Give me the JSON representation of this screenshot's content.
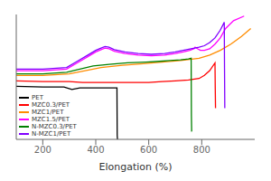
{
  "chart_data": {
    "type": "line",
    "xlabel": "Elongation (%)",
    "xlim": [
      100,
      1000
    ],
    "ylim": [
      -0.6,
      1.0
    ],
    "xticks": [
      200,
      400,
      600,
      800
    ],
    "tick_labels": "x",
    "legend": "lower left",
    "series": [
      {
        "name": "PET",
        "color": "#000000",
        "x": [
          100,
          200,
          280,
          310,
          340,
          360,
          460,
          480,
          481,
          482
        ],
        "values": [
          0.08,
          0.07,
          0.07,
          0.04,
          0.06,
          0.06,
          0.06,
          0.06,
          -0.55,
          -0.6
        ]
      },
      {
        "name": "MZC0.3/PET",
        "color": "#ff0000",
        "x": [
          100,
          200,
          300,
          350,
          400,
          500,
          600,
          650,
          700,
          750,
          790,
          810,
          830,
          850,
          851,
          852
        ],
        "values": [
          0.15,
          0.14,
          0.14,
          0.13,
          0.13,
          0.13,
          0.13,
          0.14,
          0.15,
          0.16,
          0.18,
          0.22,
          0.28,
          0.38,
          0.05,
          -0.2
        ]
      },
      {
        "name": "MZC1/PET",
        "color": "#ff8c00",
        "x": [
          100,
          200,
          300,
          360,
          420,
          500,
          580,
          650,
          720,
          790,
          830,
          870,
          910,
          950,
          985
        ],
        "values": [
          0.22,
          0.22,
          0.24,
          0.28,
          0.32,
          0.35,
          0.37,
          0.39,
          0.41,
          0.44,
          0.48,
          0.54,
          0.62,
          0.72,
          0.82
        ]
      },
      {
        "name": "MZC1.5/PET",
        "color": "#ff00ff",
        "x": [
          100,
          200,
          290,
          330,
          370,
          400,
          420,
          435,
          450,
          470,
          510,
          560,
          610,
          660,
          700,
          730,
          755,
          770,
          771,
          775,
          785,
          795,
          810,
          830,
          850,
          870,
          890,
          920,
          960
        ],
        "values": [
          0.28,
          0.28,
          0.3,
          0.38,
          0.46,
          0.52,
          0.55,
          0.57,
          0.56,
          0.53,
          0.5,
          0.48,
          0.47,
          0.48,
          0.5,
          0.52,
          0.54,
          0.56,
          0.56,
          0.58,
          0.56,
          0.54,
          0.54,
          0.56,
          0.62,
          0.7,
          0.82,
          0.92,
          0.98
        ]
      },
      {
        "name": "N-MZC0.3/PET",
        "color": "#008000",
        "x": [
          100,
          200,
          290,
          340,
          390,
          450,
          520,
          590,
          640,
          680,
          720,
          750,
          760,
          761,
          762
        ],
        "values": [
          0.24,
          0.24,
          0.26,
          0.3,
          0.34,
          0.36,
          0.38,
          0.39,
          0.4,
          0.41,
          0.42,
          0.43,
          0.44,
          -0.3,
          -0.5
        ]
      },
      {
        "name": "N-MZC1/PET",
        "color": "#8000ff",
        "x": [
          100,
          200,
          290,
          330,
          370,
          400,
          420,
          435,
          450,
          470,
          510,
          560,
          610,
          660,
          700,
          730,
          760,
          790,
          810,
          830,
          850,
          870,
          885,
          886,
          887
        ],
        "values": [
          0.3,
          0.3,
          0.32,
          0.4,
          0.48,
          0.54,
          0.57,
          0.59,
          0.58,
          0.55,
          0.52,
          0.5,
          0.49,
          0.5,
          0.52,
          0.54,
          0.56,
          0.58,
          0.6,
          0.64,
          0.7,
          0.8,
          0.9,
          0.3,
          -0.2
        ]
      }
    ]
  }
}
